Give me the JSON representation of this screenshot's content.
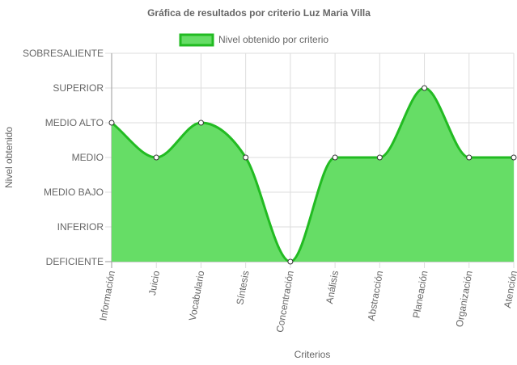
{
  "chart_data": {
    "type": "area",
    "title": "Gráfica de resultados por criterio Luz Maria Villa",
    "xlabel": "Criterios",
    "ylabel": "Nivel obtenido",
    "levels": [
      "DEFICIENTE",
      "INFERIOR",
      "MEDIO BAJO",
      "MEDIO",
      "MEDIO ALTO",
      "SUPERIOR",
      "SOBRESALIENTE"
    ],
    "categories": [
      "Información",
      "Juicio",
      "Vocabulario",
      "Síntesis",
      "Concentración",
      "Análisis",
      "Abstracción",
      "Planeación",
      "Organización",
      "Atención"
    ],
    "series": [
      {
        "name": "Nivel obtenido por criterio",
        "values": [
          "MEDIO ALTO",
          "MEDIO",
          "MEDIO ALTO",
          "MEDIO",
          "DEFICIENTE",
          "MEDIO",
          "MEDIO",
          "SUPERIOR",
          "MEDIO",
          "MEDIO"
        ],
        "fill_color": "#66dd66",
        "line_color": "#22bb22"
      }
    ],
    "grid": true,
    "legend_position": "top"
  }
}
